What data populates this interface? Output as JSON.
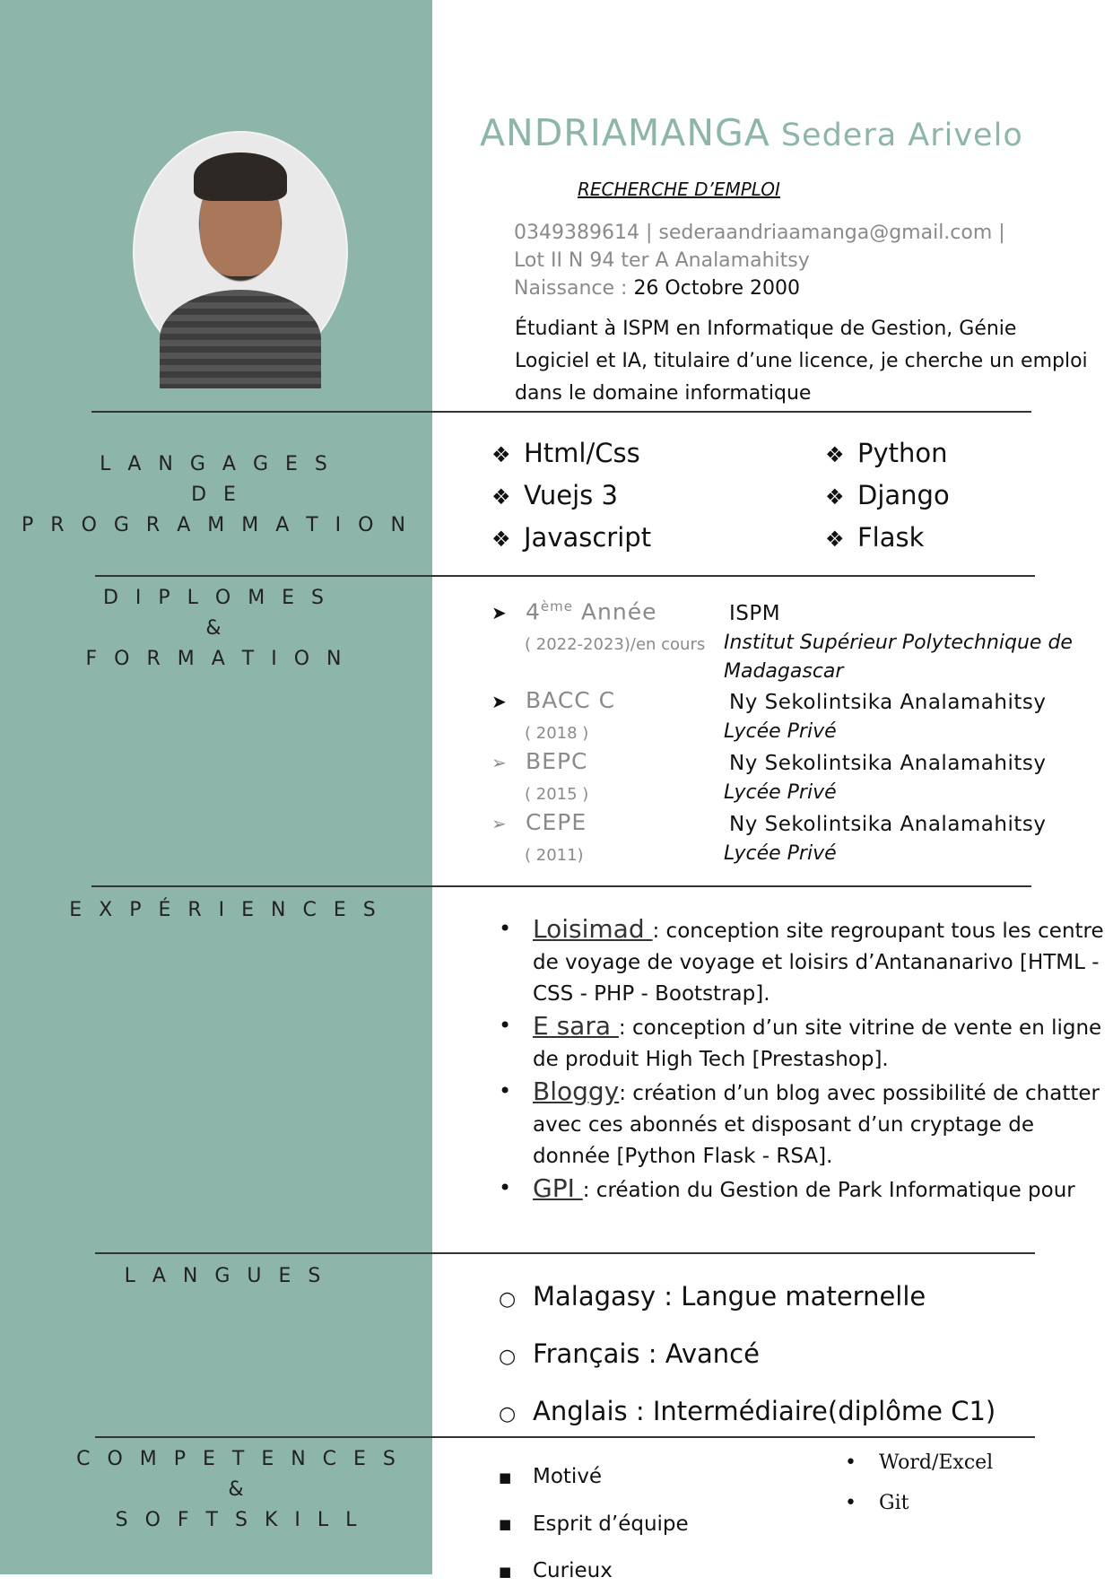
{
  "header": {
    "last_name": "ANDRIAMANGA",
    "first_name": "Sedera Arivelo",
    "objective": "RECHERCHE D’EMPLOI",
    "contact_line1": "0349389614 | sederaandriaamanga@gmail.com |",
    "contact_line2": "Lot II N 94 ter A Analamahitsy",
    "birth_label": "Naissance : ",
    "birth_date": "26 Octobre 2000",
    "summary": "Étudiant à ISPM en Informatique de Gestion, Génie Logiciel et IA, titulaire d’une licence,  je cherche un emploi dans le domaine informatique"
  },
  "sections": {
    "languages_prog": [
      "L A N G A G E S",
      "D E",
      "P R O G R A M M A T I O N"
    ],
    "diplomas": [
      "D I P L O M E S",
      "&",
      "F O R M A T I O N"
    ],
    "experiences": "E X P É R I E N C E S",
    "languages": "L A N G U E S",
    "skills": [
      "C O M P E T E N C E S",
      "&",
      "S O F T  S K I L L"
    ]
  },
  "prog_languages": {
    "left": [
      "Html/Css",
      "Vuejs 3",
      "Javascript"
    ],
    "right": [
      "Python",
      "Django",
      "Flask"
    ]
  },
  "diplomas": [
    {
      "title_base": "4",
      "title_sup": "ème",
      "title_rest": " Année",
      "year": "( 2022-2023)/en cours",
      "school": "ISPM",
      "type_line1": "Institut Supérieur Polytechnique de",
      "type_line2": "Madagascar"
    },
    {
      "title": "BACC  C",
      "year": "( 2018 )",
      "school": "Ny Sekolintsika Analamahitsy",
      "type": "Lycée Privé"
    },
    {
      "title": "BEPC",
      "year": "( 2015 )",
      "school": "Ny Sekolintsika Analamahitsy",
      "type": "Lycée Privé"
    },
    {
      "title": "CEPE",
      "year": "( 2011)",
      "school": "Ny Sekolintsika Analamahitsy",
      "type": "Lycée Privé"
    }
  ],
  "experiences": [
    {
      "name": "Loisimad ",
      "desc": ": conception site regroupant tous les centre de voyage de voyage et loisirs d’Antananarivo [HTML - CSS - PHP - Bootstrap]."
    },
    {
      "name": "E sara ",
      "desc": ": conception d’un site vitrine de vente en ligne de produit High Tech [Prestashop]."
    },
    {
      "name": "Bloggy",
      "desc": ": création d’un blog avec possibilité de chatter avec ces abonnés et disposant d’un cryptage de donnée [Python Flask - RSA]."
    },
    {
      "name": "GPI ",
      "desc": ": création du Gestion de Park Informatique pour"
    }
  ],
  "languages": [
    "Malagasy : Langue maternelle",
    "Français : Avancé",
    "Anglais : Intermédiaire(diplôme C1)"
  ],
  "soft_skills": [
    "Motivé",
    "Esprit d’équipe",
    "Curieux"
  ],
  "tools": [
    "Word/Excel",
    "Git"
  ],
  "colors": {
    "sidebar": "#8db5aa",
    "accent": "#8db5aa"
  }
}
